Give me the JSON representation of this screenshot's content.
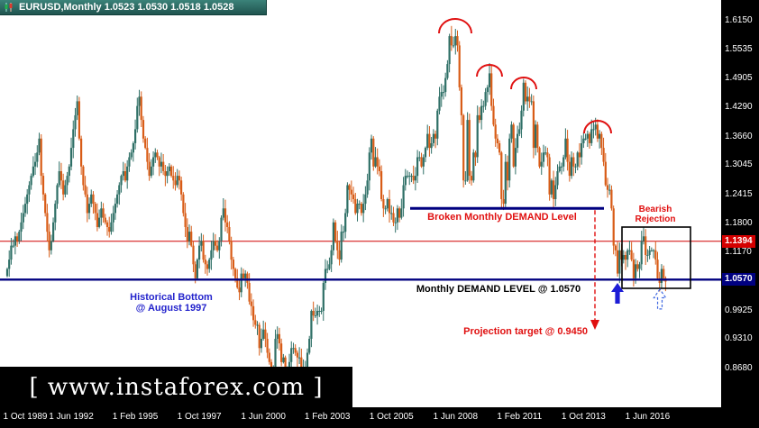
{
  "window": {
    "symbol": "EURUSD",
    "period": "Monthly",
    "open": "1.0523",
    "high": "1.0530",
    "low": "1.0518",
    "close": "1.0528",
    "title_text": "EURUSD,Monthly 1.0523 1.0530 1.0518 1.0528"
  },
  "watermark": {
    "text": "[ www.instaforex.com ]"
  },
  "colors": {
    "bull": "#2e6f66",
    "bear": "#d85c17",
    "demand_line": "#000080",
    "red_line": "#d10000",
    "annotation_red": "#e01010",
    "annotation_blue": "#2323cc",
    "arrow_blue": "#1c1cd6",
    "arrow_blue_light": "#4169e1",
    "tag_red_bg": "#d40000",
    "tag_navy_bg": "#000080",
    "titlebar": "#2e7d74",
    "plot_bg": "#ffffff",
    "axis_bg": "#000000"
  },
  "chart_data": {
    "type": "candlestick",
    "symbol": "EURUSD",
    "timeframe": "Monthly",
    "start_month": "1989-10",
    "end_month": "2017-03",
    "n_months": 330,
    "first_open": 1.065,
    "ylim": [
      0.7829,
      1.6576
    ],
    "grid": false,
    "y_axis_ticks": [
      "1.6150",
      "1.5535",
      "1.4905",
      "1.4290",
      "1.3660",
      "1.3045",
      "1.2415",
      "1.1800",
      "1.1170",
      "0.9925",
      "0.9310",
      "0.8680"
    ],
    "x_axis_labels": [
      "1 Oct 1989",
      "1 Jun 1992",
      "1 Feb 1995",
      "1 Oct 1997",
      "1 Jun 2000",
      "1 Feb 2003",
      "1 Oct 2005",
      "1 Jun 2008",
      "1 Feb 2011",
      "1 Oct 2013",
      "1 Jun 2016"
    ],
    "x_label_interval_months": 32,
    "price_tags": [
      {
        "value": "1.1394",
        "price": 1.1394,
        "bg": "#d40000"
      },
      {
        "value": "1.0570",
        "price": 1.057,
        "bg": "#000080"
      }
    ],
    "levels": {
      "demand_level": 1.057,
      "broken_demand_level": 1.21,
      "marked_price": 1.1394,
      "projection_target": 0.945,
      "historical_bottom_month": "1997-08"
    },
    "annotations": {
      "broken_demand": "Broken Monthly DEMAND Level",
      "demand": "Monthly DEMAND LEVEL @ 1.0570",
      "historical_bottom": [
        "Historical Bottom",
        "@ August 1997"
      ],
      "bearish_rejection": [
        "Bearish",
        "Rejection"
      ],
      "projection": "Projection target @ 0.9450"
    },
    "closes": [
      1.08,
      1.1,
      1.13,
      1.13,
      1.15,
      1.14,
      1.16,
      1.18,
      1.2,
      1.22,
      1.24,
      1.26,
      1.28,
      1.3,
      1.31,
      1.33,
      1.36,
      1.28,
      1.24,
      1.2,
      1.16,
      1.12,
      1.14,
      1.18,
      1.22,
      1.26,
      1.29,
      1.27,
      1.24,
      1.26,
      1.28,
      1.3,
      1.34,
      1.38,
      1.41,
      1.44,
      1.36,
      1.3,
      1.26,
      1.24,
      1.2,
      1.22,
      1.24,
      1.22,
      1.2,
      1.17,
      1.19,
      1.21,
      1.19,
      1.18,
      1.17,
      1.16,
      1.18,
      1.2,
      1.22,
      1.24,
      1.26,
      1.28,
      1.29,
      1.27,
      1.3,
      1.32,
      1.33,
      1.35,
      1.38,
      1.43,
      1.45,
      1.4,
      1.36,
      1.34,
      1.31,
      1.28,
      1.3,
      1.32,
      1.33,
      1.32,
      1.3,
      1.31,
      1.29,
      1.28,
      1.29,
      1.3,
      1.28,
      1.27,
      1.26,
      1.28,
      1.27,
      1.24,
      1.2,
      1.17,
      1.14,
      1.16,
      1.13,
      1.09,
      1.06,
      1.1,
      1.13,
      1.14,
      1.1,
      1.09,
      1.08,
      1.1,
      1.12,
      1.14,
      1.13,
      1.12,
      1.14,
      1.19,
      1.21,
      1.18,
      1.17,
      1.14,
      1.1,
      1.08,
      1.06,
      1.04,
      1.03,
      1.07,
      1.06,
      1.07,
      1.05,
      1.01,
      1.0,
      0.97,
      0.96,
      0.96,
      0.91,
      0.93,
      0.95,
      0.93,
      0.9,
      0.88,
      0.85,
      0.87,
      0.93,
      0.94,
      0.92,
      0.88,
      0.89,
      0.85,
      0.85,
      0.88,
      0.91,
      0.91,
      0.9,
      0.89,
      0.89,
      0.86,
      0.87,
      0.87,
      0.9,
      0.93,
      0.99,
      0.98,
      0.98,
      0.99,
      0.99,
      0.99,
      1.05,
      1.08,
      1.08,
      1.09,
      1.12,
      1.18,
      1.14,
      1.12,
      1.1,
      1.16,
      1.16,
      1.2,
      1.26,
      1.25,
      1.24,
      1.23,
      1.2,
      1.22,
      1.22,
      1.2,
      1.22,
      1.24,
      1.27,
      1.33,
      1.36,
      1.3,
      1.32,
      1.3,
      1.29,
      1.23,
      1.21,
      1.21,
      1.23,
      1.2,
      1.2,
      1.18,
      1.18,
      1.21,
      1.19,
      1.21,
      1.26,
      1.28,
      1.28,
      1.28,
      1.28,
      1.27,
      1.28,
      1.32,
      1.32,
      1.3,
      1.32,
      1.34,
      1.37,
      1.34,
      1.35,
      1.37,
      1.36,
      1.42,
      1.45,
      1.46,
      1.46,
      1.49,
      1.52,
      1.58,
      1.56,
      1.56,
      1.58,
      1.56,
      1.47,
      1.41,
      1.27,
      1.27,
      1.4,
      1.28,
      1.27,
      1.33,
      1.32,
      1.41,
      1.4,
      1.43,
      1.43,
      1.46,
      1.47,
      1.5,
      1.43,
      1.39,
      1.36,
      1.35,
      1.33,
      1.23,
      1.22,
      1.31,
      1.27,
      1.36,
      1.39,
      1.3,
      1.34,
      1.37,
      1.38,
      1.42,
      1.48,
      1.44,
      1.45,
      1.44,
      1.44,
      1.34,
      1.39,
      1.34,
      1.3,
      1.31,
      1.33,
      1.33,
      1.32,
      1.24,
      1.27,
      1.23,
      1.26,
      1.29,
      1.3,
      1.3,
      1.32,
      1.36,
      1.31,
      1.28,
      1.32,
      1.3,
      1.3,
      1.33,
      1.32,
      1.35,
      1.36,
      1.36,
      1.37,
      1.35,
      1.38,
      1.38,
      1.39,
      1.36,
      1.37,
      1.34,
      1.31,
      1.26,
      1.25,
      1.25,
      1.21,
      1.13,
      1.12,
      1.07,
      1.12,
      1.1,
      1.11,
      1.1,
      1.12,
      1.12,
      1.1,
      1.06,
      1.09,
      1.08,
      1.09,
      1.14,
      1.15,
      1.11,
      1.11,
      1.12,
      1.12,
      1.12,
      1.1,
      1.06,
      1.05,
      1.08,
      1.06,
      1.0528
    ]
  }
}
